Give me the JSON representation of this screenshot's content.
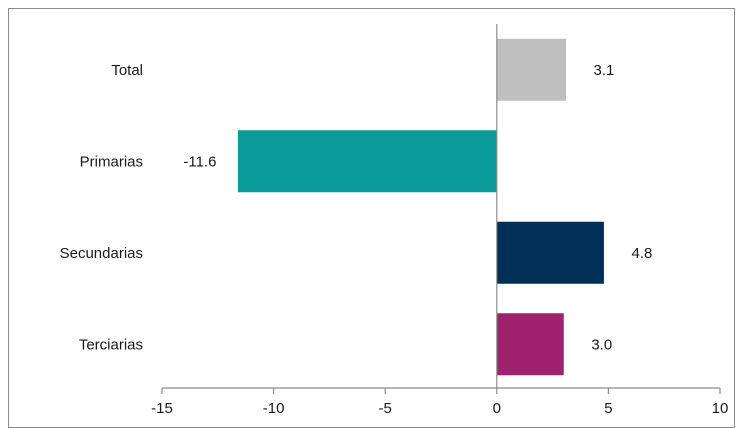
{
  "chart_data": {
    "type": "bar",
    "orientation": "horizontal",
    "categories": [
      "Total",
      "Primarias",
      "Secundarias",
      "Terciarias"
    ],
    "values": [
      3.1,
      -11.6,
      4.8,
      3.0
    ],
    "value_labels": [
      "3.1",
      "-11.6",
      "4.8",
      "3.0"
    ],
    "colors": [
      "#bfbfbf",
      "#0b9a9a",
      "#003057",
      "#a0226f"
    ],
    "xlim": [
      -15,
      10
    ],
    "xticks": [
      -15,
      -10,
      -5,
      0,
      5,
      10
    ],
    "xtick_labels": [
      "-15",
      "-10",
      "-5",
      "0",
      "5",
      "10"
    ],
    "title": "",
    "xlabel": "",
    "ylabel": "",
    "grid": false,
    "legend": "none"
  }
}
